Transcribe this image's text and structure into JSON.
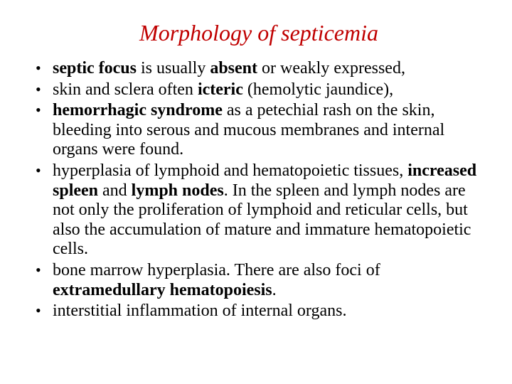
{
  "title": {
    "text": "Morphology of septicemia",
    "color": "#c00000",
    "fontsize_pt": 32,
    "font_style": "italic",
    "font_family": "Times New Roman"
  },
  "body": {
    "fontsize_pt": 24,
    "font_family": "Times New Roman",
    "text_color": "#000000",
    "bullet_color": "#000000"
  },
  "background_color": "#ffffff",
  "bullets": [
    {
      "runs": [
        {
          "t": "septic focus",
          "bold": true
        },
        {
          "t": " is usually ",
          "bold": false
        },
        {
          "t": "absent",
          "bold": true
        },
        {
          "t": " or weakly expressed,",
          "bold": false
        }
      ]
    },
    {
      "runs": [
        {
          "t": " skin and sclera often ",
          "bold": false
        },
        {
          "t": "icteric",
          "bold": true
        },
        {
          "t": " (hemolytic jaundice),",
          "bold": false
        }
      ]
    },
    {
      "runs": [
        {
          "t": " ",
          "bold": false
        },
        {
          "t": "hemorrhagic syndrome",
          "bold": true
        },
        {
          "t": " as a petechial rash on the skin, bleeding into serous and mucous membranes and internal organs were found.",
          "bold": false
        }
      ]
    },
    {
      "runs": [
        {
          "t": "hyperplasia of lymphoid and hematopoietic tissues, ",
          "bold": false
        },
        {
          "t": "increased spleen",
          "bold": true
        },
        {
          "t": " and ",
          "bold": false
        },
        {
          "t": "lymph nodes",
          "bold": true
        },
        {
          "t": ". In the spleen and lymph nodes are not only the proliferation of lymphoid and reticular cells, but also the accumulation of mature and immature hematopoietic cells.",
          "bold": false
        }
      ]
    },
    {
      "runs": [
        {
          "t": "bone marrow hyperplasia. There are also foci of ",
          "bold": false
        },
        {
          "t": "extramedullary hematopoiesis",
          "bold": true
        },
        {
          "t": ".",
          "bold": false
        }
      ]
    },
    {
      "runs": [
        {
          "t": "interstitial inflammation of internal organs.",
          "bold": false
        }
      ]
    }
  ]
}
